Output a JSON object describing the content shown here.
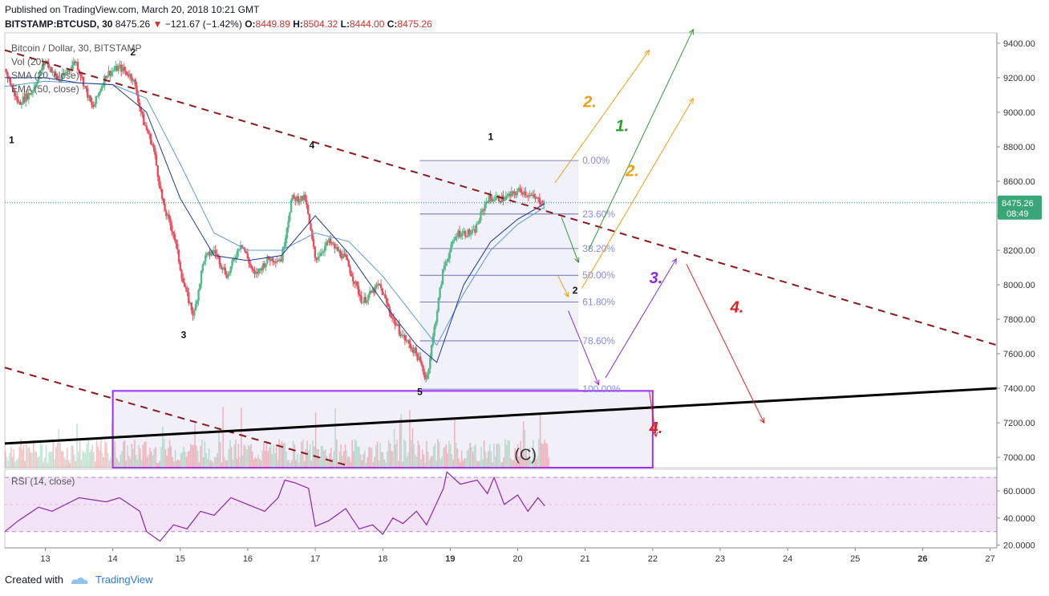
{
  "header": {
    "published": "Published on TradingView.com, March 20, 2018 10:21 GMT",
    "symbol": "BITSTAMP:BTCUSD, 30",
    "last": "8475.26",
    "change": "−121.67 (−1.42%)",
    "o_label": "O:",
    "o_value": "8449.89",
    "h_label": "H:",
    "h_value": "8504.32",
    "l_label": "L:",
    "l_value": "8444.00",
    "c_label": "C:",
    "c_value": "8475.26"
  },
  "legend": {
    "title": "Bitcoin / Dollar, 30, BITSTAMP",
    "vol": "Vol (20)",
    "sma": "SMA (20, close)",
    "ema": "EMA (50, close)"
  },
  "rsi_label": "RSI (14, close)",
  "footer": {
    "created": "Created with",
    "brand": "TradingView"
  },
  "colors": {
    "up": "#53b987",
    "down": "#eb4d5c",
    "sma": "#1e3a8a",
    "ema": "#5b9bd5",
    "rsi": "#8e24aa",
    "orange": "#f39c12",
    "green": "#2e9b2e",
    "purple": "#8a2be2",
    "red": "#e02020"
  },
  "chart_data": {
    "type": "candlestick",
    "price_axis": {
      "ticks": [
        9400,
        9200,
        9000,
        8800,
        8600,
        8400,
        8200,
        8000,
        7800,
        7600,
        7400,
        7200,
        7000
      ],
      "range": [
        6940,
        9460
      ]
    },
    "time_axis": {
      "labels": [
        "13",
        "14",
        "15",
        "16",
        "17",
        "18",
        "19",
        "20",
        "21",
        "22",
        "23",
        "24",
        "25",
        "26",
        "27"
      ],
      "bold": [
        "19",
        "26"
      ]
    },
    "rsi_axis": {
      "ticks": [
        "60.0000",
        "40.0000",
        "20.0000"
      ],
      "values": [
        60,
        40,
        20
      ],
      "bands": [
        70,
        30
      ],
      "range": [
        18,
        76
      ]
    },
    "last_price_label": "8475.26",
    "countdown": "08:49",
    "price_path": [
      [
        12.4,
        9250
      ],
      [
        12.6,
        9050
      ],
      [
        12.8,
        9120
      ],
      [
        13.0,
        9300
      ],
      [
        13.2,
        9180
      ],
      [
        13.45,
        9300
      ],
      [
        13.7,
        9020
      ],
      [
        13.9,
        9220
      ],
      [
        14.1,
        9260
      ],
      [
        14.3,
        9200
      ],
      [
        14.45,
        8950
      ],
      [
        14.6,
        8800
      ],
      [
        14.75,
        8450
      ],
      [
        14.9,
        8300
      ],
      [
        15.05,
        8000
      ],
      [
        15.2,
        7820
      ],
      [
        15.35,
        8150
      ],
      [
        15.5,
        8200
      ],
      [
        15.7,
        8050
      ],
      [
        15.9,
        8250
      ],
      [
        16.1,
        8050
      ],
      [
        16.3,
        8150
      ],
      [
        16.5,
        8150
      ],
      [
        16.65,
        8500
      ],
      [
        16.85,
        8500
      ],
      [
        17.0,
        8150
      ],
      [
        17.2,
        8250
      ],
      [
        17.45,
        8150
      ],
      [
        17.7,
        7900
      ],
      [
        17.95,
        8000
      ],
      [
        18.15,
        7800
      ],
      [
        18.3,
        7700
      ],
      [
        18.5,
        7600
      ],
      [
        18.65,
        7450
      ],
      [
        18.9,
        8100
      ],
      [
        19.1,
        8300
      ],
      [
        19.35,
        8300
      ],
      [
        19.55,
        8500
      ],
      [
        19.8,
        8500
      ],
      [
        20.05,
        8550
      ],
      [
        20.25,
        8500
      ],
      [
        20.4,
        8475
      ]
    ],
    "sma20_path": [
      [
        12.4,
        9200
      ],
      [
        13.0,
        9200
      ],
      [
        13.5,
        9170
      ],
      [
        14.0,
        9160
      ],
      [
        14.5,
        9000
      ],
      [
        15.0,
        8500
      ],
      [
        15.5,
        8170
      ],
      [
        16.0,
        8140
      ],
      [
        16.5,
        8170
      ],
      [
        17.0,
        8400
      ],
      [
        17.5,
        8180
      ],
      [
        18.0,
        7900
      ],
      [
        18.5,
        7650
      ],
      [
        18.8,
        7550
      ],
      [
        19.2,
        8000
      ],
      [
        19.6,
        8250
      ],
      [
        20.0,
        8380
      ],
      [
        20.4,
        8470
      ]
    ],
    "ema50_path": [
      [
        12.4,
        9150
      ],
      [
        13.0,
        9180
      ],
      [
        13.5,
        9170
      ],
      [
        14.0,
        9160
      ],
      [
        14.5,
        9080
      ],
      [
        15.0,
        8700
      ],
      [
        15.5,
        8300
      ],
      [
        16.0,
        8200
      ],
      [
        16.5,
        8200
      ],
      [
        17.0,
        8300
      ],
      [
        17.5,
        8250
      ],
      [
        18.0,
        8050
      ],
      [
        18.5,
        7800
      ],
      [
        18.8,
        7650
      ],
      [
        19.2,
        7950
      ],
      [
        19.6,
        8200
      ],
      [
        20.0,
        8350
      ],
      [
        20.4,
        8450
      ]
    ],
    "rsi_path": [
      [
        12.4,
        30
      ],
      [
        12.6,
        38
      ],
      [
        12.9,
        48
      ],
      [
        13.1,
        45
      ],
      [
        13.5,
        55
      ],
      [
        13.9,
        52
      ],
      [
        14.1,
        55
      ],
      [
        14.4,
        45
      ],
      [
        14.5,
        30
      ],
      [
        14.7,
        23
      ],
      [
        14.9,
        35
      ],
      [
        15.1,
        32
      ],
      [
        15.3,
        45
      ],
      [
        15.5,
        42
      ],
      [
        15.75,
        55
      ],
      [
        16.0,
        50
      ],
      [
        16.25,
        45
      ],
      [
        16.45,
        55
      ],
      [
        16.55,
        68
      ],
      [
        16.7,
        66
      ],
      [
        16.9,
        62
      ],
      [
        17.0,
        34
      ],
      [
        17.2,
        38
      ],
      [
        17.45,
        47
      ],
      [
        17.65,
        32
      ],
      [
        17.85,
        35
      ],
      [
        18.0,
        28
      ],
      [
        18.15,
        40
      ],
      [
        18.3,
        36
      ],
      [
        18.5,
        45
      ],
      [
        18.65,
        35
      ],
      [
        18.9,
        62
      ],
      [
        18.95,
        74
      ],
      [
        19.15,
        65
      ],
      [
        19.4,
        68
      ],
      [
        19.55,
        58
      ],
      [
        19.65,
        70
      ],
      [
        19.8,
        50
      ],
      [
        20.0,
        57
      ],
      [
        20.15,
        45
      ],
      [
        20.3,
        55
      ],
      [
        20.4,
        49
      ]
    ],
    "fibonacci": {
      "x_range": [
        18.55,
        20.9
      ],
      "levels": [
        {
          "label": "0.00%",
          "price": 8720
        },
        {
          "label": "23.60%",
          "price": 8410
        },
        {
          "label": "38.20%",
          "price": 8210
        },
        {
          "label": "50.00%",
          "price": 8055
        },
        {
          "label": "61.80%",
          "price": 7900
        },
        {
          "label": "78.60%",
          "price": 7675
        },
        {
          "label": "100.00%",
          "price": 7395
        }
      ]
    },
    "box": {
      "x_range": [
        14.0,
        22.0
      ],
      "price_top": 7385,
      "price_bottom": 6940
    },
    "trendlines": [
      {
        "style": "dashed",
        "from": [
          12.4,
          9360
        ],
        "to": [
          27.1,
          7650
        ]
      },
      {
        "style": "dashed",
        "from": [
          12.4,
          7520
        ],
        "to": [
          17.5,
          6950
        ]
      },
      {
        "style": "solid",
        "from": [
          12.4,
          7080
        ],
        "to": [
          27.1,
          7400
        ]
      }
    ],
    "wave_labels": [
      {
        "text": "1",
        "x": 12.5,
        "price": 8820
      },
      {
        "text": "2",
        "x": 14.3,
        "price": 9330
      },
      {
        "text": "3",
        "x": 15.05,
        "price": 7690
      },
      {
        "text": "4",
        "x": 16.95,
        "price": 8790
      },
      {
        "text": "5",
        "x": 18.55,
        "price": 7360
      },
      {
        "text": "1",
        "x": 19.6,
        "price": 8840
      },
      {
        "text": "2",
        "x": 20.85,
        "price": 7950
      }
    ],
    "scenario_labels": [
      {
        "text": "2.",
        "color": "orange",
        "x": 20.97,
        "price": 9030
      },
      {
        "text": "1.",
        "color": "green",
        "x": 21.45,
        "price": 8890
      },
      {
        "text": "2.",
        "color": "orange",
        "x": 21.6,
        "price": 8630
      },
      {
        "text": "3.",
        "color": "purple",
        "x": 21.95,
        "price": 8010
      },
      {
        "text": "4.",
        "color": "red",
        "x": 23.15,
        "price": 7840
      },
      {
        "text": "4.",
        "color": "red",
        "x": 21.95,
        "price": 7140
      }
    ],
    "corrective_label": "(C)"
  }
}
